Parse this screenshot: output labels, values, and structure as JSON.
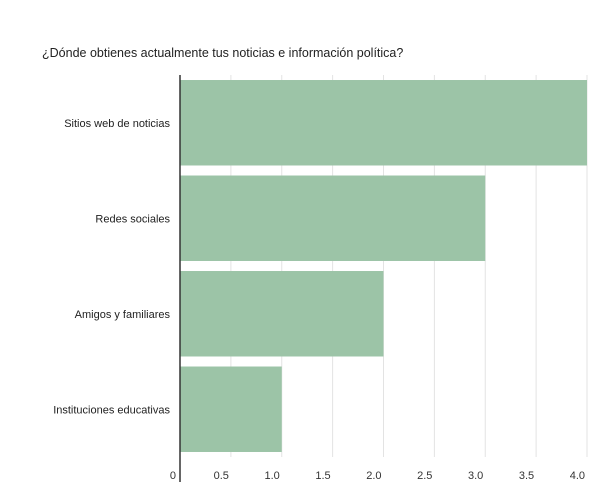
{
  "chart_data": {
    "type": "bar",
    "orientation": "horizontal",
    "title": "¿Dónde obtienes actualmente tus noticias e información política?",
    "categories": [
      "Sitios web de noticias",
      "Redes sociales",
      "Amigos y familiares",
      "Instituciones educativas"
    ],
    "values": [
      4,
      3,
      2,
      1
    ],
    "xlim": [
      0,
      4
    ],
    "x_ticks": [
      0,
      0.5,
      1.0,
      1.5,
      2.0,
      2.5,
      3.0,
      3.5,
      4.0
    ],
    "x_tick_labels": [
      "0",
      "0.5",
      "1.0",
      "1.5",
      "2.0",
      "2.5",
      "3.0",
      "3.5",
      "4.0"
    ],
    "xlabel": "",
    "ylabel": "",
    "grid": "vertical",
    "legend": "none",
    "colors": {
      "bar": "#9cc4a7",
      "grid": "#e3e3e3",
      "axis": "#333333"
    }
  }
}
